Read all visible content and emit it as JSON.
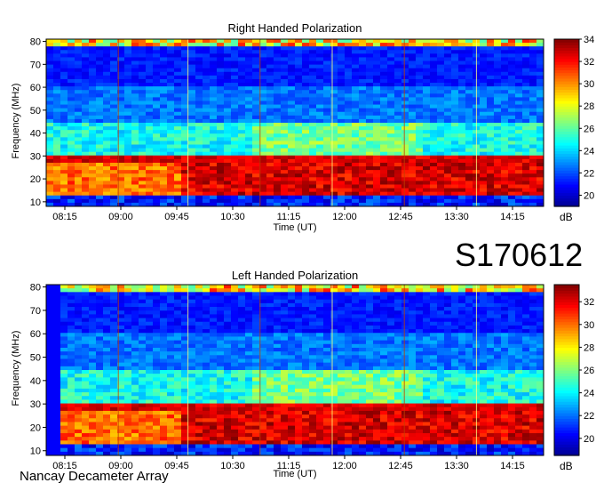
{
  "tag": "S170612",
  "footer": "Nancay Decameter Array",
  "colors": {
    "colormap": [
      "#00008f",
      "#0000ff",
      "#0080ff",
      "#00ffff",
      "#80ff80",
      "#ffff00",
      "#ff8000",
      "#ff0000",
      "#800000"
    ]
  },
  "chart_data": [
    {
      "type": "heatmap",
      "title": "Right Handed Polarization",
      "xlabel": "Time (UT)",
      "ylabel": "Frequency (MHz)",
      "x_ticks": [
        "08:15",
        "09:00",
        "09:45",
        "10:30",
        "11:15",
        "12:00",
        "12:45",
        "13:30",
        "14:15"
      ],
      "y_ticks": [
        10,
        20,
        30,
        40,
        50,
        60,
        70,
        80
      ],
      "ylim": [
        8,
        81
      ],
      "colorbar": {
        "label": "dB",
        "ticks": [
          20,
          22,
          24,
          26,
          28,
          30,
          32,
          34
        ],
        "range": [
          19,
          34
        ]
      }
    },
    {
      "type": "heatmap",
      "title": "Left Handed Polarization",
      "xlabel": "Time (UT)",
      "ylabel": "Frequency (MHz)",
      "x_ticks": [
        "08:15",
        "09:00",
        "09:45",
        "10:30",
        "11:15",
        "12:00",
        "12:45",
        "13:30",
        "14:15"
      ],
      "y_ticks": [
        10,
        20,
        30,
        40,
        50,
        60,
        70,
        80
      ],
      "ylim": [
        8,
        81
      ],
      "colorbar": {
        "label": "dB",
        "ticks": [
          20,
          22,
          24,
          26,
          28,
          30,
          32
        ],
        "range": [
          18.5,
          33.5
        ]
      }
    }
  ]
}
